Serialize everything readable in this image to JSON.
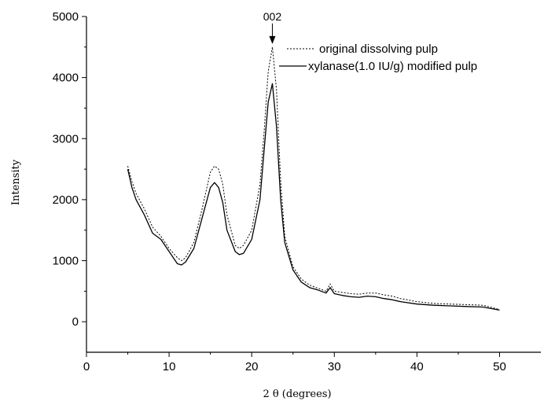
{
  "chart_data": {
    "type": "line",
    "xlabel": "2 θ (degrees)",
    "ylabel": "Intensity",
    "xlim": [
      0,
      55
    ],
    "ylim": [
      -500,
      5000
    ],
    "xticks": [
      "0",
      "10",
      "20",
      "30",
      "40",
      "50"
    ],
    "yticks": [
      "0",
      "1000",
      "2000",
      "3000",
      "4000",
      "5000"
    ],
    "annotation": "002",
    "annotation_point": {
      "x": 22.5,
      "y": 4500
    },
    "legend_position": "top-right",
    "series": [
      {
        "name": "original dissolving pulp",
        "line_style": "dotted",
        "x": [
          5,
          5.5,
          6,
          7,
          8,
          9,
          10,
          11,
          11.5,
          12,
          13,
          14,
          15,
          15.5,
          16,
          16.5,
          17,
          18,
          18.5,
          19,
          20,
          21,
          21.5,
          22,
          22.5,
          23,
          23.5,
          24,
          25,
          26,
          27,
          28,
          29,
          29.5,
          30,
          31,
          32,
          33,
          34,
          35,
          36,
          37,
          38,
          40,
          42,
          44,
          46,
          48,
          50
        ],
        "y": [
          2550,
          2300,
          2100,
          1850,
          1550,
          1400,
          1200,
          1050,
          1000,
          1050,
          1300,
          1850,
          2450,
          2550,
          2500,
          2250,
          1750,
          1250,
          1200,
          1250,
          1500,
          2250,
          3100,
          4100,
          4500,
          3800,
          2300,
          1400,
          900,
          700,
          600,
          550,
          500,
          620,
          500,
          480,
          460,
          450,
          470,
          470,
          440,
          420,
          380,
          330,
          300,
          290,
          280,
          270,
          200
        ]
      },
      {
        "name": "xylanase(1.0 IU/g) modified pulp",
        "line_style": "solid",
        "x": [
          5,
          5.5,
          6,
          7,
          8,
          9,
          10,
          11,
          11.5,
          12,
          13,
          14,
          15,
          15.5,
          16,
          16.5,
          17,
          18,
          18.5,
          19,
          20,
          21,
          21.5,
          22,
          22.5,
          23,
          23.5,
          24,
          25,
          26,
          27,
          28,
          29,
          29.5,
          30,
          31,
          32,
          33,
          34,
          35,
          36,
          37,
          38,
          40,
          42,
          44,
          46,
          48,
          50
        ],
        "y": [
          2500,
          2200,
          2000,
          1750,
          1450,
          1350,
          1150,
          950,
          930,
          980,
          1200,
          1700,
          2200,
          2280,
          2200,
          1950,
          1500,
          1150,
          1100,
          1120,
          1350,
          2000,
          2800,
          3600,
          3900,
          3200,
          2000,
          1300,
          850,
          650,
          560,
          520,
          470,
          560,
          460,
          430,
          410,
          400,
          420,
          410,
          380,
          360,
          330,
          290,
          270,
          260,
          250,
          240,
          190
        ]
      }
    ]
  }
}
